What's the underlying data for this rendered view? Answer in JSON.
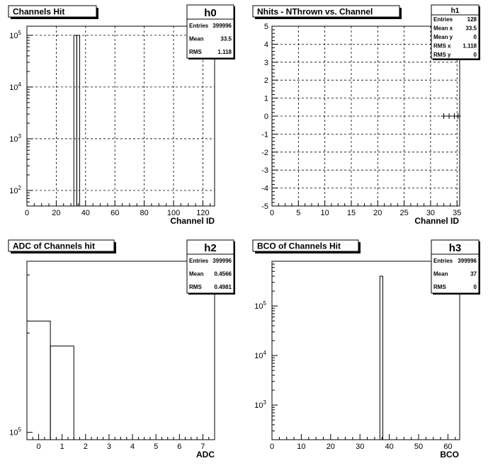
{
  "chart_data": [
    {
      "type": "bar",
      "title": "Channels Hit",
      "stats_name": "h0",
      "stats": [
        {
          "label": "Entries",
          "value": "399996"
        },
        {
          "label": "Mean",
          "value": "33.5"
        },
        {
          "label": "RMS",
          "value": "1.118"
        }
      ],
      "xlabel": "Channel ID",
      "ylabel": "",
      "xlim": [
        0,
        128
      ],
      "ylim": [
        50,
        150000
      ],
      "log_y": true,
      "grid": true,
      "x_ticks": [
        "0",
        "20",
        "40",
        "60",
        "80",
        "100",
        "120"
      ],
      "y_ticks": [
        {
          "base": "10",
          "exp": "2",
          "value": 100
        },
        {
          "base": "10",
          "exp": "3",
          "value": 1000
        },
        {
          "base": "10",
          "exp": "4",
          "value": 10000
        },
        {
          "base": "10",
          "exp": "5",
          "value": 100000
        }
      ],
      "bins": [
        {
          "x0": 32,
          "x1": 34,
          "y": 100000
        },
        {
          "x0": 34,
          "x1": 36,
          "y": 100000
        }
      ]
    },
    {
      "type": "scatter",
      "title": "Nhits - NThrown vs. Channel",
      "stats_name": "h1",
      "stats": [
        {
          "label": "Entries",
          "value": "128"
        },
        {
          "label": "Mean x",
          "value": "33.5"
        },
        {
          "label": "Mean y",
          "value": "0"
        },
        {
          "label": "RMS x",
          "value": "1.118"
        },
        {
          "label": "RMS y",
          "value": "0"
        }
      ],
      "xlabel": "Channel ID",
      "ylabel": "",
      "xlim": [
        0,
        35.5
      ],
      "ylim": [
        -5,
        5
      ],
      "grid": true,
      "x_ticks": [
        "0",
        "5",
        "10",
        "15",
        "20",
        "25",
        "30",
        "35"
      ],
      "y_ticks": [
        "-5",
        "-4",
        "-3",
        "-2",
        "-1",
        "0",
        "1",
        "2",
        "3",
        "4",
        "5"
      ],
      "points": [
        {
          "x": 32.5,
          "y": 0
        },
        {
          "x": 33.5,
          "y": 0
        },
        {
          "x": 34.5,
          "y": 0
        },
        {
          "x": 35.2,
          "y": 0
        }
      ]
    },
    {
      "type": "bar",
      "title": "ADC of Channels hit",
      "stats_name": "h2",
      "stats": [
        {
          "label": "Entries",
          "value": "399996"
        },
        {
          "label": "Mean",
          "value": "0.4566"
        },
        {
          "label": "RMS",
          "value": "0.4981"
        }
      ],
      "xlabel": "ADC",
      "ylabel": "",
      "xlim": [
        -0.5,
        7.5
      ],
      "ylim": [
        95000,
        330000
      ],
      "log_y": true,
      "grid": false,
      "x_ticks": [
        "0",
        "1",
        "2",
        "3",
        "4",
        "5",
        "6",
        "7"
      ],
      "y_ticks": [
        {
          "base": "10",
          "exp": "5",
          "value": 100000
        }
      ],
      "bins": [
        {
          "x0": -0.5,
          "x1": 0.5,
          "y": 217400
        },
        {
          "x0": 0.5,
          "x1": 1.5,
          "y": 182600
        }
      ]
    },
    {
      "type": "bar",
      "title": "BCO of Channels Hit",
      "stats_name": "h3",
      "stats": [
        {
          "label": "Entries",
          "value": "399996"
        },
        {
          "label": "Mean",
          "value": "37"
        },
        {
          "label": "RMS",
          "value": "0"
        }
      ],
      "xlabel": "BCO",
      "ylabel": "",
      "xlim": [
        0,
        64
      ],
      "ylim": [
        200,
        800000
      ],
      "log_y": true,
      "grid": false,
      "x_ticks": [
        "0",
        "10",
        "20",
        "30",
        "40",
        "50",
        "60"
      ],
      "y_ticks": [
        {
          "base": "10",
          "exp": "3",
          "value": 1000
        },
        {
          "base": "10",
          "exp": "4",
          "value": 10000
        },
        {
          "base": "10",
          "exp": "5",
          "value": 100000
        }
      ],
      "bins": [
        {
          "x0": 36.8,
          "x1": 37.8,
          "y": 399996
        }
      ]
    }
  ]
}
